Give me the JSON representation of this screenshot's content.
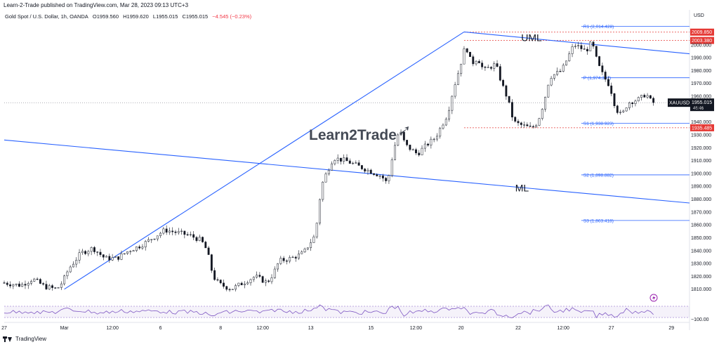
{
  "header": {
    "published_note": "Learn-2-Trade published on TradingView.com, Mar 28, 2023 09:13 UTC+3",
    "symbol_title": "Gold Spot / U.S. Dollar, 1h, OANDA",
    "open": "O1959.560",
    "high": "H1959.620",
    "low": "L1955.015",
    "close": "C1955.015",
    "change": "−4.545 (−0.23%)"
  },
  "footer": {
    "brand": "TradingView"
  },
  "watermark": {
    "text": "Learn2Trade"
  },
  "colors": {
    "up": "#131722",
    "down": "#131722",
    "line": "#2962ff",
    "accent_red": "#e53935",
    "rsi": "#7e57c2"
  },
  "chart_data": {
    "type": "candlestick",
    "instrument": "XAUUSD",
    "currency": "USD",
    "timeframe": "1h",
    "y_axis": {
      "label": "USD",
      "ylim": [
        1800,
        2025
      ],
      "ticks": [
        1810,
        1820,
        1830,
        1840,
        1850,
        1860,
        1870,
        1880,
        1890,
        1900,
        1910,
        1920,
        1930,
        1940,
        1950,
        1960,
        1970,
        1980,
        1990,
        2000
      ]
    },
    "x_axis": {
      "ticks": [
        {
          "label": "27",
          "i": 0
        },
        {
          "label": "Mar",
          "i": 20
        },
        {
          "label": "12:00",
          "i": 36
        },
        {
          "label": "6",
          "i": 52
        },
        {
          "label": "8",
          "i": 72
        },
        {
          "label": "12:00",
          "i": 86
        },
        {
          "label": "13",
          "i": 102
        },
        {
          "label": "15",
          "i": 122
        },
        {
          "label": "12:00",
          "i": 137
        },
        {
          "label": "20",
          "i": 152
        },
        {
          "label": "22",
          "i": 171
        },
        {
          "label": "12:00",
          "i": 186
        },
        {
          "label": "27",
          "i": 202
        },
        {
          "label": "29",
          "i": 222
        }
      ],
      "n_bars": 228
    },
    "price_path": [
      [
        0,
        1815
      ],
      [
        6,
        1813
      ],
      [
        10,
        1818
      ],
      [
        14,
        1812
      ],
      [
        18,
        1810
      ],
      [
        20,
        1816
      ],
      [
        22,
        1826
      ],
      [
        26,
        1838
      ],
      [
        30,
        1842
      ],
      [
        34,
        1834
      ],
      [
        38,
        1834
      ],
      [
        42,
        1840
      ],
      [
        46,
        1844
      ],
      [
        50,
        1850
      ],
      [
        54,
        1856
      ],
      [
        58,
        1854
      ],
      [
        62,
        1852
      ],
      [
        66,
        1848
      ],
      [
        68,
        1840
      ],
      [
        70,
        1820
      ],
      [
        72,
        1814
      ],
      [
        76,
        1810
      ],
      [
        80,
        1815
      ],
      [
        84,
        1820
      ],
      [
        88,
        1815
      ],
      [
        90,
        1822
      ],
      [
        92,
        1832
      ],
      [
        96,
        1834
      ],
      [
        100,
        1838
      ],
      [
        104,
        1852
      ],
      [
        106,
        1890
      ],
      [
        108,
        1902
      ],
      [
        110,
        1912
      ],
      [
        114,
        1910
      ],
      [
        118,
        1906
      ],
      [
        122,
        1902
      ],
      [
        126,
        1898
      ],
      [
        128,
        1892
      ],
      [
        130,
        1918
      ],
      [
        132,
        1934
      ],
      [
        134,
        1922
      ],
      [
        138,
        1915
      ],
      [
        140,
        1920
      ],
      [
        144,
        1928
      ],
      [
        148,
        1946
      ],
      [
        150,
        1966
      ],
      [
        152,
        1982
      ],
      [
        154,
        2000
      ],
      [
        156,
        1985
      ],
      [
        158,
        1990
      ],
      [
        160,
        1980
      ],
      [
        164,
        1985
      ],
      [
        166,
        1970
      ],
      [
        168,
        1958
      ],
      [
        170,
        1940
      ],
      [
        172,
        1938
      ],
      [
        176,
        1935
      ],
      [
        178,
        1940
      ],
      [
        180,
        1955
      ],
      [
        182,
        1975
      ],
      [
        186,
        1980
      ],
      [
        188,
        1990
      ],
      [
        190,
        2000
      ],
      [
        192,
        1998
      ],
      [
        194,
        1995
      ],
      [
        196,
        2002
      ],
      [
        198,
        1985
      ],
      [
        200,
        1975
      ],
      [
        202,
        1968
      ],
      [
        204,
        1950
      ],
      [
        206,
        1945
      ],
      [
        208,
        1955
      ],
      [
        212,
        1958
      ],
      [
        214,
        1962
      ],
      [
        216,
        1955
      ]
    ],
    "last_price": {
      "symbol": "XAUUSD",
      "value": "1955.015",
      "countdown": "46:46",
      "price": 1955.015
    },
    "horizontal_levels": [
      {
        "name": "R1",
        "label": "R1 (2,014.428)",
        "value": 2014.428,
        "kind": "pivot"
      },
      {
        "name": "P",
        "label": "P (1,974.387)",
        "value": 1974.387,
        "kind": "pivot"
      },
      {
        "name": "S1",
        "label": "S1 (1,938.923)",
        "value": 1938.923,
        "kind": "pivot"
      },
      {
        "name": "S2",
        "label": "S2 (1,898.882)",
        "value": 1898.882,
        "kind": "pivot"
      },
      {
        "name": "S3",
        "label": "S3 (1,863.418)",
        "value": 1863.418,
        "kind": "pivot"
      },
      {
        "name": "res-high",
        "label": "2009.850",
        "value": 2009.85,
        "kind": "red"
      },
      {
        "name": "res-low",
        "label": "2003.380",
        "value": 2003.38,
        "kind": "red"
      },
      {
        "name": "sup",
        "label": "1935.485",
        "value": 1935.485,
        "kind": "red"
      }
    ],
    "trendlines": [
      {
        "name": "lower-parallel",
        "p1": [
          20,
          1810
        ],
        "p2": [
          153,
          2010
        ]
      },
      {
        "name": "uml-line",
        "label": "UML",
        "label_at": [
          172,
          2003
        ],
        "p1": [
          153,
          2010
        ],
        "p2": [
          228,
          1993
        ]
      },
      {
        "name": "ml-line",
        "label": "ML",
        "label_at": [
          170,
          1886
        ],
        "p1": [
          0,
          1926
        ],
        "p2": [
          228,
          1877
        ]
      }
    ],
    "rsi": {
      "band_upper": 70,
      "band_lower": 30
    }
  }
}
